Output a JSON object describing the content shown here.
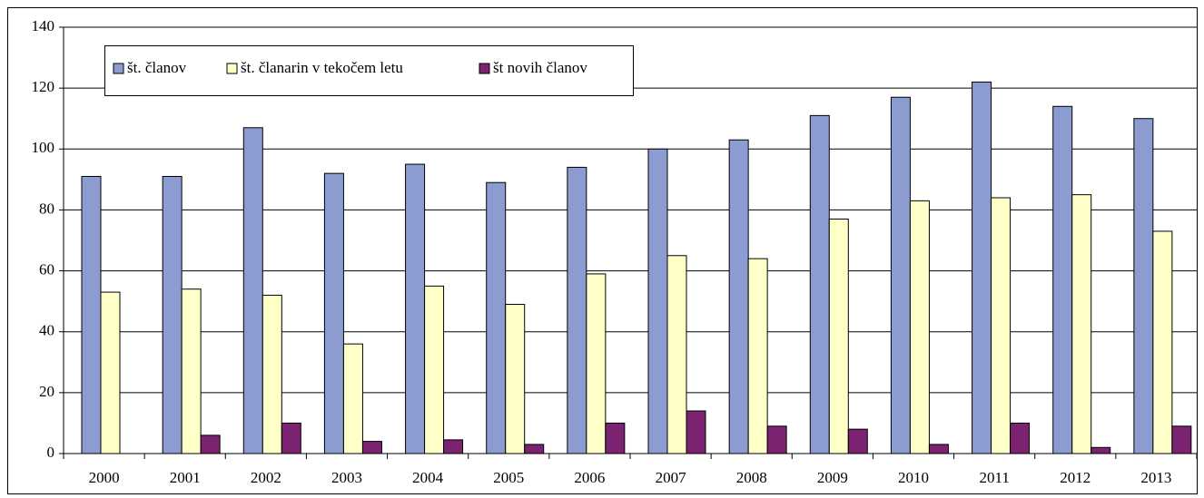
{
  "chart_data": {
    "type": "bar",
    "categories": [
      "2000",
      "2001",
      "2002",
      "2003",
      "2004",
      "2005",
      "2006",
      "2007",
      "2008",
      "2009",
      "2010",
      "2011",
      "2012",
      "2013"
    ],
    "series": [
      {
        "name": "št. članov",
        "color": "#8c9bd0",
        "values": [
          91,
          91,
          107,
          92,
          95,
          89,
          94,
          100,
          103,
          111,
          117,
          122,
          114,
          110
        ]
      },
      {
        "name": "št. članarin v tekočem letu",
        "color": "#ffffc8",
        "values": [
          53,
          54,
          52,
          36,
          55,
          49,
          59,
          65,
          64,
          77,
          83,
          84,
          85,
          73
        ]
      },
      {
        "name": "št novih članov",
        "color": "#7b2270",
        "values": [
          0,
          6,
          10,
          4,
          4.5,
          3,
          10,
          14,
          9,
          8,
          3,
          10,
          2,
          9
        ]
      }
    ],
    "ylim": [
      0,
      140
    ],
    "yticks": [
      0,
      20,
      40,
      60,
      80,
      100,
      120,
      140
    ],
    "grid": true,
    "legend": "top-left"
  }
}
